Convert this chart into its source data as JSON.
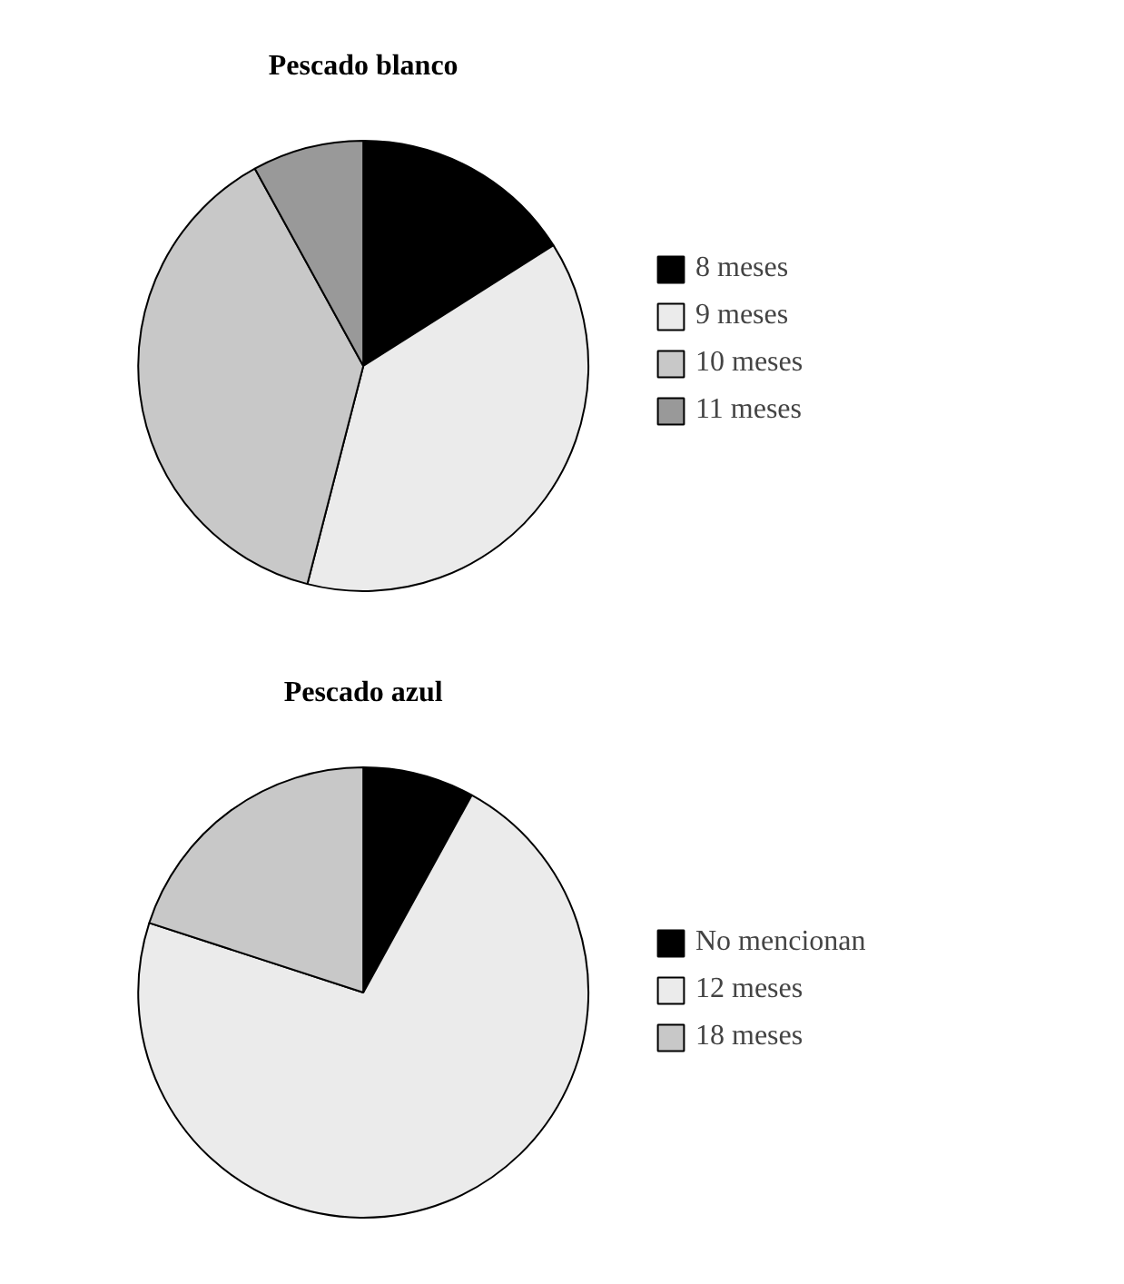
{
  "chart_data": [
    {
      "type": "pie",
      "title": "Pescado blanco",
      "categories": [
        "8 meses",
        "9 meses",
        "10 meses",
        "11 meses"
      ],
      "values": [
        16,
        38,
        38,
        8
      ],
      "colors": [
        "#000000",
        "#ebebeb",
        "#c8c8c8",
        "#999999"
      ],
      "legend": "right"
    },
    {
      "type": "pie",
      "title": "Pescado azul",
      "categories": [
        "No mencionan",
        "12 meses",
        "18 meses"
      ],
      "values": [
        8,
        72,
        20
      ],
      "colors": [
        "#000000",
        "#ebebeb",
        "#c8c8c8"
      ],
      "legend": "right"
    }
  ]
}
